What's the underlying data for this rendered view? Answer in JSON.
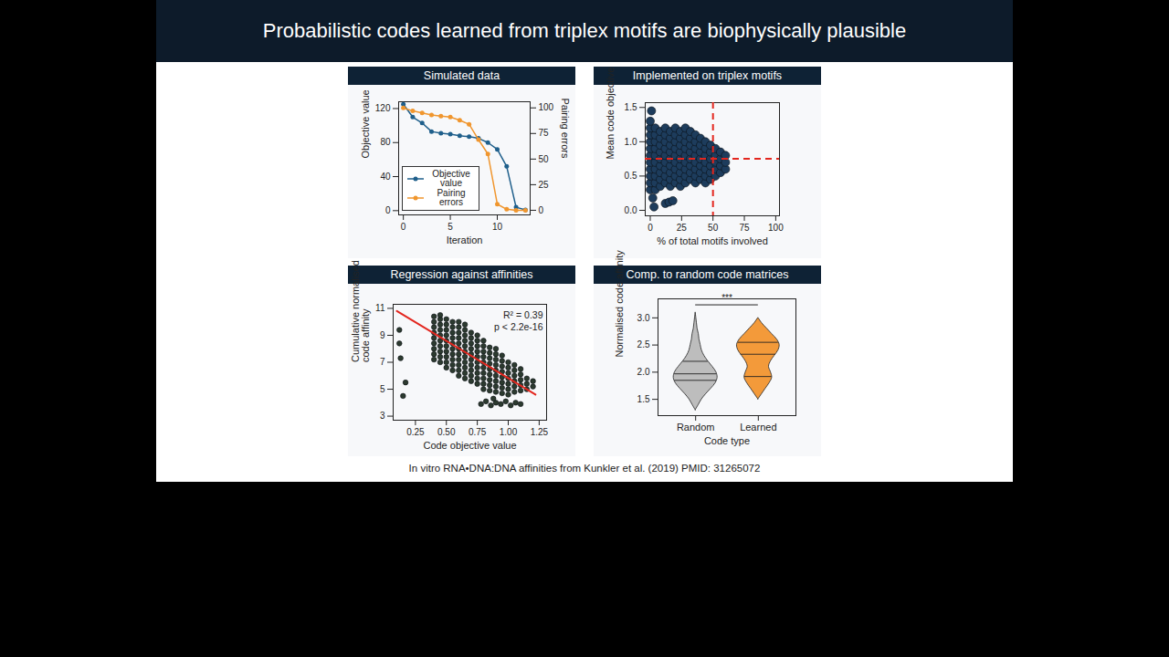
{
  "slide_title": "Probabilistic codes learned from triplex motifs are biophysically plausible",
  "footnote": "In vitro RNA•DNA:DNA affinities from Kunkler et al. (2019) PMID: 31265072",
  "chart_data": [
    {
      "type": "line",
      "title": "Simulated data",
      "x_label": "Iteration",
      "y_label": "Objective value",
      "y2_label": "Pairing errors",
      "x": [
        0,
        1,
        2,
        3,
        4,
        5,
        6,
        7,
        8,
        9,
        10,
        11,
        12,
        13
      ],
      "series": [
        {
          "name": "Objective value",
          "color": "#1f5f8b",
          "marker": "circle",
          "values": [
            125,
            110,
            103,
            93,
            91,
            90,
            88,
            87,
            85,
            80,
            72,
            52,
            4,
            1
          ]
        },
        {
          "name": "Pairing errors",
          "color": "#f0962e",
          "marker": "circle",
          "axis": "y2",
          "values": [
            100,
            97,
            95,
            93,
            92,
            91,
            88,
            84,
            69,
            55,
            6,
            1,
            0,
            0
          ]
        }
      ],
      "xlim": [
        -0.5,
        13.5
      ],
      "xticks": [
        0,
        5,
        10
      ],
      "ylim": [
        -5,
        128
      ],
      "yticks": [
        0,
        40,
        80,
        120
      ],
      "y2lim": [
        -4.5,
        106
      ],
      "y2ticks": [
        0,
        25,
        50,
        75,
        100
      ],
      "legend": "lower left"
    },
    {
      "type": "scatter",
      "title": "Implemented on triplex motifs",
      "x_label": "% of total motifs involved",
      "y_label": "Mean code objective",
      "color": "#1d3c5c",
      "x": [
        0,
        0,
        0,
        0,
        0,
        0,
        0,
        0,
        0,
        0,
        0,
        4,
        4,
        4,
        4,
        4,
        4,
        4,
        4,
        4,
        4,
        8,
        8,
        8,
        8,
        8,
        8,
        8,
        8,
        8,
        12,
        12,
        12,
        12,
        12,
        12,
        12,
        12,
        12,
        16,
        16,
        16,
        16,
        16,
        16,
        16,
        16,
        16,
        20,
        20,
        20,
        20,
        20,
        20,
        20,
        20,
        20,
        24,
        24,
        24,
        24,
        24,
        24,
        24,
        24,
        24,
        28,
        28,
        28,
        28,
        28,
        28,
        28,
        28,
        28,
        32,
        32,
        32,
        32,
        32,
        32,
        32,
        32,
        36,
        36,
        36,
        36,
        36,
        36,
        36,
        36,
        40,
        40,
        40,
        40,
        40,
        40,
        40,
        44,
        44,
        44,
        44,
        44,
        44,
        44,
        48,
        48,
        48,
        48,
        48,
        48,
        52,
        52,
        52,
        52,
        52,
        56,
        56,
        56,
        56,
        60,
        60,
        60,
        1,
        12,
        15,
        18,
        3,
        2
      ],
      "values": [
        0.3,
        0.4,
        0.5,
        0.6,
        0.7,
        0.8,
        0.9,
        1.0,
        1.1,
        1.2,
        1.3,
        0.3,
        0.4,
        0.5,
        0.6,
        0.7,
        0.8,
        0.9,
        1.0,
        1.1,
        1.2,
        0.35,
        0.45,
        0.55,
        0.65,
        0.75,
        0.85,
        0.95,
        1.05,
        1.15,
        0.4,
        0.5,
        0.6,
        0.7,
        0.8,
        0.9,
        1.0,
        1.1,
        1.2,
        0.35,
        0.45,
        0.55,
        0.65,
        0.75,
        0.85,
        0.95,
        1.05,
        1.15,
        0.4,
        0.5,
        0.6,
        0.7,
        0.8,
        0.9,
        1.0,
        1.1,
        1.2,
        0.35,
        0.45,
        0.55,
        0.65,
        0.75,
        0.85,
        0.95,
        1.05,
        1.15,
        0.4,
        0.5,
        0.6,
        0.7,
        0.8,
        0.9,
        1.0,
        1.1,
        1.2,
        0.45,
        0.55,
        0.65,
        0.75,
        0.85,
        0.95,
        1.05,
        1.15,
        0.4,
        0.5,
        0.6,
        0.7,
        0.8,
        0.9,
        1.0,
        1.1,
        0.45,
        0.55,
        0.65,
        0.75,
        0.85,
        0.95,
        1.05,
        0.4,
        0.5,
        0.6,
        0.7,
        0.8,
        0.9,
        1.0,
        0.45,
        0.55,
        0.65,
        0.75,
        0.85,
        0.95,
        0.5,
        0.6,
        0.7,
        0.8,
        0.9,
        0.55,
        0.65,
        0.75,
        0.85,
        0.6,
        0.7,
        0.8,
        1.45,
        0.1,
        0.12,
        0.14,
        0.05,
        0.18
      ],
      "xlim": [
        -4,
        103
      ],
      "xticks": [
        0,
        25,
        50,
        75,
        100
      ],
      "ylim": [
        -0.08,
        1.57
      ],
      "yticks": [
        {
          "value": 0,
          "label": "0.0"
        },
        0.5,
        {
          "value": 1,
          "label": "1.0"
        },
        1.5
      ],
      "reference_lines": {
        "x": 50,
        "y": 0.75,
        "color": "#e3261e",
        "line_style": "dashed"
      }
    },
    {
      "type": "scatter",
      "title": "Regression against affinities",
      "x_label": "Code objective value",
      "y_label": "Cumulative normalised code affinity",
      "color": "#2c3a2f",
      "x": [
        0.4,
        0.4,
        0.4,
        0.4,
        0.4,
        0.4,
        0.4,
        0.4,
        0.4,
        0.45,
        0.45,
        0.45,
        0.45,
        0.45,
        0.45,
        0.45,
        0.45,
        0.45,
        0.45,
        0.5,
        0.5,
        0.5,
        0.5,
        0.5,
        0.5,
        0.5,
        0.5,
        0.5,
        0.5,
        0.55,
        0.55,
        0.55,
        0.55,
        0.55,
        0.55,
        0.55,
        0.55,
        0.55,
        0.55,
        0.6,
        0.6,
        0.6,
        0.6,
        0.6,
        0.6,
        0.6,
        0.6,
        0.6,
        0.6,
        0.6,
        0.65,
        0.65,
        0.65,
        0.65,
        0.65,
        0.65,
        0.65,
        0.65,
        0.65,
        0.65,
        0.65,
        0.7,
        0.7,
        0.7,
        0.7,
        0.7,
        0.7,
        0.7,
        0.7,
        0.7,
        0.7,
        0.75,
        0.75,
        0.75,
        0.75,
        0.75,
        0.75,
        0.75,
        0.75,
        0.75,
        0.75,
        0.8,
        0.8,
        0.8,
        0.8,
        0.8,
        0.8,
        0.8,
        0.8,
        0.8,
        0.8,
        0.85,
        0.85,
        0.85,
        0.85,
        0.85,
        0.85,
        0.85,
        0.85,
        0.85,
        0.9,
        0.9,
        0.9,
        0.9,
        0.9,
        0.9,
        0.9,
        0.9,
        0.9,
        0.95,
        0.95,
        0.95,
        0.95,
        0.95,
        0.95,
        0.95,
        0.95,
        1.0,
        1.0,
        1.0,
        1.0,
        1.0,
        1.0,
        1.0,
        1.05,
        1.05,
        1.05,
        1.05,
        1.05,
        1.05,
        1.1,
        1.1,
        1.1,
        1.1,
        1.1,
        1.15,
        1.15,
        1.15,
        1.2,
        1.2,
        0.78,
        0.82,
        0.86,
        0.9,
        0.94,
        0.98,
        1.02,
        1.06,
        1.1,
        0.88,
        0.12,
        0.12,
        0.13,
        0.17,
        0.15
      ],
      "values": [
        7.2,
        7.6,
        8.0,
        8.4,
        8.8,
        9.2,
        9.6,
        10.0,
        10.4,
        7.0,
        7.4,
        7.8,
        8.2,
        8.6,
        9.0,
        9.4,
        9.8,
        10.2,
        10.5,
        6.6,
        7.0,
        7.4,
        7.8,
        8.2,
        8.6,
        9.0,
        9.4,
        9.8,
        10.2,
        6.4,
        6.8,
        7.2,
        7.6,
        8.0,
        8.4,
        8.8,
        9.2,
        9.6,
        10.0,
        6.0,
        6.4,
        6.8,
        7.2,
        7.6,
        8.0,
        8.4,
        8.8,
        9.2,
        9.6,
        10.0,
        5.8,
        6.2,
        6.6,
        7.0,
        7.4,
        7.8,
        8.2,
        8.6,
        9.0,
        9.4,
        9.8,
        5.6,
        6.0,
        6.4,
        6.8,
        7.2,
        7.6,
        8.0,
        8.4,
        8.8,
        9.2,
        5.4,
        5.8,
        6.2,
        6.6,
        7.0,
        7.4,
        7.8,
        8.2,
        8.6,
        9.0,
        5.0,
        5.4,
        5.8,
        6.2,
        6.6,
        7.0,
        7.4,
        7.8,
        8.2,
        8.6,
        4.9,
        5.3,
        5.7,
        6.1,
        6.5,
        6.9,
        7.3,
        7.7,
        8.1,
        4.8,
        5.2,
        5.6,
        6.0,
        6.4,
        6.8,
        7.2,
        7.6,
        8.0,
        4.7,
        5.1,
        5.5,
        5.9,
        6.3,
        6.7,
        7.1,
        7.5,
        4.6,
        5.0,
        5.4,
        5.8,
        6.2,
        6.6,
        7.0,
        4.8,
        5.2,
        5.6,
        6.0,
        6.4,
        6.8,
        4.9,
        5.3,
        5.7,
        6.1,
        6.5,
        5.0,
        5.4,
        5.8,
        5.2,
        5.6,
        3.9,
        4.1,
        3.8,
        4.0,
        3.9,
        4.1,
        3.8,
        4.0,
        3.9,
        4.3,
        9.4,
        8.4,
        7.3,
        5.5,
        4.5
      ],
      "xlim": [
        0.07,
        1.31
      ],
      "xticks": [
        0.25,
        {
          "value": 0.5,
          "label": "0.50"
        },
        0.75,
        {
          "value": 1,
          "label": "1.00"
        },
        1.25
      ],
      "ylim": [
        2.7,
        11.3
      ],
      "yticks": [
        3,
        5,
        7,
        9,
        11
      ],
      "regression_line": {
        "x": [
          0.1,
          1.22
        ],
        "y": [
          10.8,
          4.6
        ],
        "color": "#e3261e"
      },
      "annotations": [
        "R² = 0.39",
        "p < 2.2e-16"
      ]
    },
    {
      "type": "violin",
      "title": "Comp. to random code matrices",
      "x_label": "Code type",
      "y_label": "Normalised code affinity",
      "categories": [
        "Random",
        "Learned"
      ],
      "colors": [
        "#bdbdbd",
        "#f39a3a"
      ],
      "y_grid": [
        1.3,
        1.4,
        1.5,
        1.6,
        1.7,
        1.8,
        1.9,
        2.0,
        2.1,
        2.2,
        2.3,
        2.4,
        2.5,
        2.6,
        2.7,
        2.8,
        2.9,
        3.0,
        3.1
      ],
      "density": [
        [
          0,
          0.05,
          0.1,
          0.17,
          0.25,
          0.32,
          0.35,
          0.33,
          0.27,
          0.2,
          0.14,
          0.1,
          0.08,
          0.06,
          0.05,
          0.03,
          0.02,
          0.01,
          0
        ],
        [
          0,
          0,
          0,
          0.06,
          0.12,
          0.18,
          0.22,
          0.2,
          0.17,
          0.2,
          0.26,
          0.32,
          0.34,
          0.3,
          0.22,
          0.14,
          0.06,
          0,
          0
        ]
      ],
      "quantiles": [
        [
          1.85,
          1.97,
          2.2
        ],
        [
          1.92,
          2.33,
          2.55
        ]
      ],
      "ylim": [
        1.2,
        3.35
      ],
      "yticks": [
        1.5,
        {
          "value": 2,
          "label": "2.0"
        },
        2.5,
        {
          "value": 3,
          "label": "3.0"
        }
      ],
      "significance": {
        "label": "***",
        "y": 3.24
      }
    }
  ]
}
